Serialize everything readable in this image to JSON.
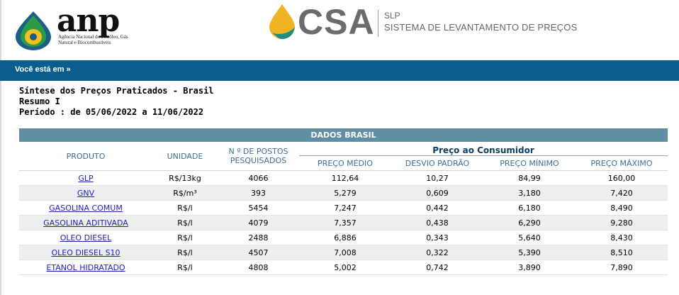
{
  "header": {
    "anp_wordmark": "anp",
    "anp_subtitle": "Agência Nacional do Petróleo, Gás Natural e Biocombustíveis",
    "csa_wordmark": "CSA",
    "system_code": "SLP",
    "system_name": "SISTEMA DE LEVANTAMENTO DE PREÇOS"
  },
  "nav": {
    "breadcrumb": "Você está em »"
  },
  "report": {
    "title": "Síntese dos Preços Praticados - Brasil",
    "subtitle": "Resumo I",
    "period": "Período : de 05/06/2022 a 11/06/2022"
  },
  "table": {
    "band_title": "DADOS BRASIL",
    "col_produto": "PRODUTO",
    "col_unidade": "UNIDADE",
    "col_postos": "N º DE POSTOS PESQUISADOS",
    "group_title": "Preço ao Consumidor",
    "col_medio": "PREÇO MÉDIO",
    "col_desvio": "DESVIO PADRÃO",
    "col_minimo": "PREÇO MÍNIMO",
    "col_maximo": "PREÇO MÁXIMO",
    "rows": [
      {
        "produto": "GLP",
        "unidade": "R$/13kg",
        "postos": "4066",
        "medio": "112,64",
        "desvio": "10,27",
        "minimo": "84,99",
        "maximo": "160,00"
      },
      {
        "produto": "GNV",
        "unidade": "R$/m³",
        "postos": "393",
        "medio": "5,279",
        "desvio": "0,609",
        "minimo": "3,180",
        "maximo": "7,420"
      },
      {
        "produto": "GASOLINA COMUM",
        "unidade": "R$/l",
        "postos": "5454",
        "medio": "7,247",
        "desvio": "0,442",
        "minimo": "6,180",
        "maximo": "8,490"
      },
      {
        "produto": "GASOLINA ADITIVADA",
        "unidade": "R$/l",
        "postos": "4079",
        "medio": "7,357",
        "desvio": "0,438",
        "minimo": "6,290",
        "maximo": "9,280"
      },
      {
        "produto": "OLEO DIESEL",
        "unidade": "R$/l",
        "postos": "2488",
        "medio": "6,886",
        "desvio": "0,343",
        "minimo": "5,640",
        "maximo": "8,430"
      },
      {
        "produto": "OLEO DIESEL S10",
        "unidade": "R$/l",
        "postos": "4507",
        "medio": "7,008",
        "desvio": "0,322",
        "minimo": "5,390",
        "maximo": "8,510"
      },
      {
        "produto": "ETANOL HIDRATADO",
        "unidade": "R$/l",
        "postos": "4808",
        "medio": "5,002",
        "desvio": "0,742",
        "minimo": "3,890",
        "maximo": "7,890"
      }
    ]
  },
  "colors": {
    "nav_bar": "#0a5e8e",
    "band": "#5f8ea5",
    "header_text": "#3a6f96",
    "link": "#1f1fb4"
  }
}
